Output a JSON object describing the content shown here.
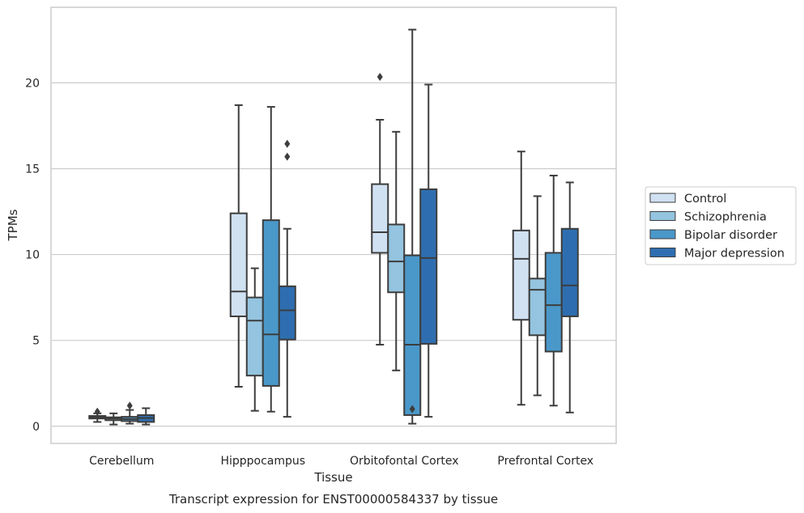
{
  "chart_data": {
    "type": "box",
    "categories": [
      "Cerebellum",
      "Hipppocampus",
      "Orbitofontal Cortex",
      "Prefrontal Cortex"
    ],
    "xlabel": "Tissue",
    "ylabel": "TPMs",
    "caption": "Transcript expression for ENST00000584337 by tissue",
    "ylim": [
      -1.0,
      24.4
    ],
    "yticks": [
      0,
      5,
      10,
      15,
      20
    ],
    "grid": true,
    "legend_position": "right",
    "series": [
      {
        "name": "Control",
        "color": "#d0e1f2",
        "boxes": [
          {
            "whislo": 0.25,
            "q1": 0.45,
            "med": 0.52,
            "q3": 0.6,
            "whishi": 0.75,
            "fliers": [
              0.85
            ]
          },
          {
            "whislo": 2.3,
            "q1": 6.4,
            "med": 7.85,
            "q3": 12.4,
            "whishi": 18.7,
            "fliers": []
          },
          {
            "whislo": 4.75,
            "q1": 10.1,
            "med": 11.3,
            "q3": 14.1,
            "whishi": 17.85,
            "fliers": [
              20.35
            ]
          },
          {
            "whislo": 1.25,
            "q1": 6.2,
            "med": 9.75,
            "q3": 11.4,
            "whishi": 16.0,
            "fliers": []
          }
        ]
      },
      {
        "name": "Schizophrenia",
        "color": "#94c4df",
        "boxes": [
          {
            "whislo": 0.1,
            "q1": 0.35,
            "med": 0.45,
            "q3": 0.52,
            "whishi": 0.75,
            "fliers": []
          },
          {
            "whislo": 0.9,
            "q1": 2.95,
            "med": 6.15,
            "q3": 7.5,
            "whishi": 9.2,
            "fliers": []
          },
          {
            "whislo": 3.25,
            "q1": 7.8,
            "med": 9.6,
            "q3": 11.75,
            "whishi": 17.15,
            "fliers": []
          },
          {
            "whislo": 1.8,
            "q1": 5.3,
            "med": 7.95,
            "q3": 8.6,
            "whishi": 13.4,
            "fliers": []
          }
        ]
      },
      {
        "name": "Bipolar disorder",
        "color": "#4a98c9",
        "boxes": [
          {
            "whislo": 0.15,
            "q1": 0.3,
            "med": 0.42,
            "q3": 0.55,
            "whishi": 0.95,
            "fliers": [
              1.2
            ]
          },
          {
            "whislo": 0.85,
            "q1": 2.35,
            "med": 5.35,
            "q3": 12.0,
            "whishi": 18.6,
            "fliers": []
          },
          {
            "whislo": 0.15,
            "q1": 0.65,
            "med": 4.75,
            "q3": 9.95,
            "whishi": 23.1,
            "fliers": [
              1.0
            ]
          },
          {
            "whislo": 1.2,
            "q1": 4.35,
            "med": 7.05,
            "q3": 10.1,
            "whishi": 14.6,
            "fliers": []
          }
        ]
      },
      {
        "name": "Major depression",
        "color": "#2e6eb0",
        "boxes": [
          {
            "whislo": 0.1,
            "q1": 0.25,
            "med": 0.48,
            "q3": 0.65,
            "whishi": 1.05,
            "fliers": []
          },
          {
            "whislo": 0.55,
            "q1": 5.05,
            "med": 6.75,
            "q3": 8.15,
            "whishi": 11.5,
            "fliers": [
              15.7,
              16.45
            ]
          },
          {
            "whislo": 0.55,
            "q1": 4.8,
            "med": 9.8,
            "q3": 13.8,
            "whishi": 19.9,
            "fliers": []
          },
          {
            "whislo": 0.8,
            "q1": 6.4,
            "med": 8.2,
            "q3": 11.5,
            "whishi": 14.2,
            "fliers": []
          }
        ]
      }
    ]
  }
}
